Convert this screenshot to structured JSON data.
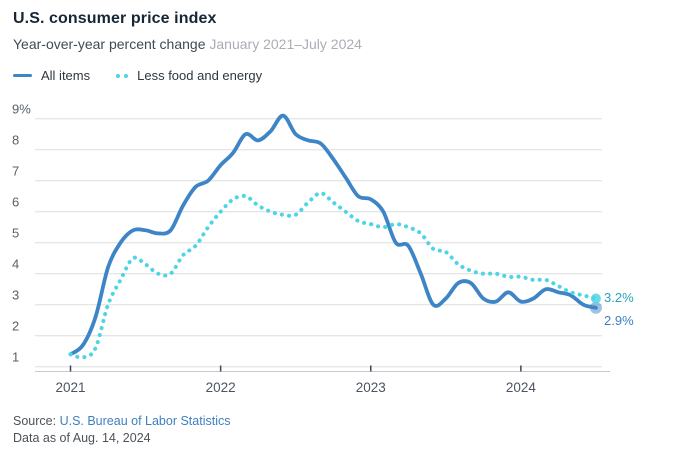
{
  "header": {
    "title": "U.S. consumer price index",
    "subtitle": "Year-over-year percent change",
    "date_range": "January 2021–July 2024"
  },
  "legend": {
    "items": [
      {
        "label": "All items",
        "style": "solid"
      },
      {
        "label": "Less food and energy",
        "style": "dotted"
      }
    ]
  },
  "chart_data": {
    "type": "line",
    "title": "U.S. consumer price index",
    "subtitle": "Year-over-year percent change",
    "x_start": "2021-01",
    "x_end": "2024-07",
    "x_interval": "monthly",
    "grid": "horizontal",
    "legend_position": "top-left",
    "x_axis": {
      "ticks": [
        {
          "month_index": 0,
          "label": "2021"
        },
        {
          "month_index": 12,
          "label": "2022"
        },
        {
          "month_index": 24,
          "label": "2023"
        },
        {
          "month_index": 36,
          "label": "2024"
        }
      ]
    },
    "y_axis": {
      "unit": "percent",
      "range_shown": [
        1,
        9
      ],
      "ticks": [
        {
          "value": 1,
          "label": "1"
        },
        {
          "value": 2,
          "label": "2"
        },
        {
          "value": 3,
          "label": "3"
        },
        {
          "value": 4,
          "label": "4"
        },
        {
          "value": 5,
          "label": "5"
        },
        {
          "value": 6,
          "label": "6"
        },
        {
          "value": 7,
          "label": "7"
        },
        {
          "value": 8,
          "label": "8"
        },
        {
          "value": 9,
          "label": "9%"
        }
      ]
    },
    "series": [
      {
        "name": "All items",
        "line_style": "solid",
        "color": "#3d85c6",
        "end_label": "2.9%",
        "end_label_color": "#3d7fc1",
        "values": [
          1.4,
          1.7,
          2.6,
          4.2,
          5.0,
          5.4,
          5.4,
          5.3,
          5.4,
          6.2,
          6.8,
          7.0,
          7.5,
          7.9,
          8.5,
          8.3,
          8.6,
          9.1,
          8.5,
          8.3,
          8.2,
          7.7,
          7.1,
          6.5,
          6.4,
          6.0,
          5.0,
          4.9,
          4.0,
          3.0,
          3.2,
          3.7,
          3.7,
          3.2,
          3.1,
          3.4,
          3.1,
          3.2,
          3.5,
          3.4,
          3.3,
          3.0,
          2.9
        ]
      },
      {
        "name": "Less food and energy",
        "line_style": "dotted",
        "color": "#4dd4e6",
        "end_label": "3.2%",
        "end_label_color": "#29a4bf",
        "values": [
          1.4,
          1.3,
          1.6,
          3.0,
          3.8,
          4.5,
          4.3,
          4.0,
          4.0,
          4.6,
          4.9,
          5.5,
          6.0,
          6.4,
          6.5,
          6.2,
          6.0,
          5.9,
          5.9,
          6.3,
          6.6,
          6.3,
          6.0,
          5.7,
          5.6,
          5.5,
          5.6,
          5.5,
          5.3,
          4.8,
          4.7,
          4.3,
          4.1,
          4.0,
          4.0,
          3.9,
          3.9,
          3.8,
          3.8,
          3.6,
          3.4,
          3.3,
          3.2
        ]
      }
    ],
    "colors": {
      "grid": "#dbdde0",
      "axis": "#c6c9ce",
      "tick": "#40454d",
      "y_label": "#58616d",
      "x_label": "#4a5462"
    }
  },
  "footer": {
    "source_prefix": "Source: ",
    "source_link": "U.S. Bureau of Labor Statistics",
    "data_as_of": "Data as of Aug. 14, 2024"
  }
}
